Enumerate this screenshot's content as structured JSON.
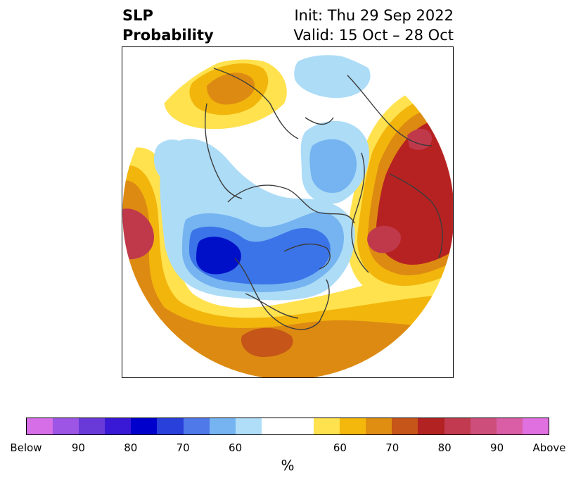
{
  "header": {
    "title_line1": "SLP",
    "title_line2": "Probability",
    "init_text": "Init: Thu 29 Sep 2022",
    "valid_text": "Valid: 15 Oct – 28 Oct"
  },
  "map": {
    "projection": "north-polar-stereographic",
    "variable": "SLP",
    "colors": {
      "below_60": "#addcf7",
      "below_70": "#75b4f0",
      "below_80": "#3b74e8",
      "below_90": "#0010c8",
      "above_60": "#ffe24d",
      "above_70": "#f2b50c",
      "above_80": "#dd8a12",
      "above_90": "#b62222",
      "above_95": "#c0394b",
      "neutral": "#ffffff",
      "coastline": "#3c3c3c"
    }
  },
  "colorbar": {
    "colors": [
      "#d66ee8",
      "#9c55e4",
      "#6a3ad9",
      "#3a19d6",
      "#0000cc",
      "#2a40db",
      "#4f78e8",
      "#75b4f0",
      "#b0def9",
      "#ffffff",
      "#ffffff",
      "#ffe24d",
      "#f4b80c",
      "#e08e12",
      "#c55518",
      "#b22222",
      "#c23a4f",
      "#cd4e7b",
      "#d95ea6",
      "#e070e0"
    ],
    "tick_labels": [
      "Below",
      "90",
      "80",
      "70",
      "60",
      "60",
      "70",
      "80",
      "90",
      "Above"
    ],
    "unit": "%"
  }
}
